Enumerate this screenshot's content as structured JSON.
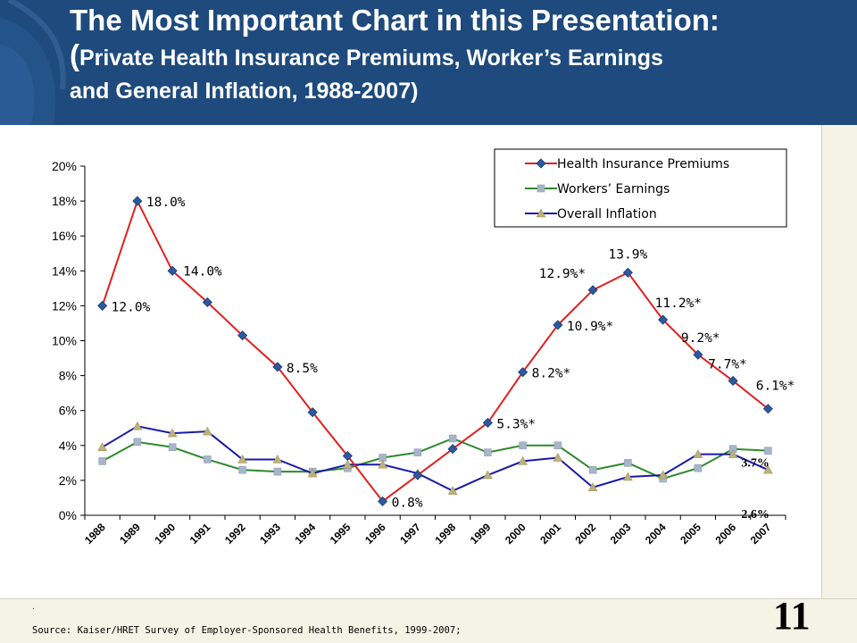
{
  "slide": {
    "title_line1": "The Most Important Chart in this Presentation:",
    "title_paren": "(",
    "title_line2": "Private Health Insurance Premiums, Worker’s Earnings",
    "title_line3": "and General Inflation, 1988-2007)",
    "page_number": "11",
    "dot": ".",
    "source": "Source:  Kaiser/HRET Survey of Employer-Sponsored Health Benefits, 1999-2007;"
  },
  "colors": {
    "header_bg": "#1e4a7d",
    "premiums": "#e02020",
    "premiums_marker": "#2b5aa0",
    "earnings": "#2d8a2d",
    "earnings_marker": "#a8b4c8",
    "inflation": "#1a1aa8",
    "inflation_marker": "#bdb07a"
  },
  "chart_data": {
    "type": "line",
    "categories": [
      "1988",
      "1989",
      "1990",
      "1991",
      "1992",
      "1993",
      "1994",
      "1995",
      "1996",
      "1997",
      "1998",
      "1999",
      "2000",
      "2001",
      "2002",
      "2003",
      "2004",
      "2005",
      "2006",
      "2007"
    ],
    "ylim": [
      0,
      20
    ],
    "yticks": [
      "0%",
      "2%",
      "4%",
      "6%",
      "8%",
      "10%",
      "12%",
      "14%",
      "16%",
      "18%",
      "20%"
    ],
    "legend_position": "top-right",
    "series": [
      {
        "name": "Health Insurance Premiums",
        "values": [
          12.0,
          18.0,
          14.0,
          12.2,
          10.3,
          8.5,
          5.9,
          3.4,
          0.8,
          2.3,
          3.8,
          5.3,
          8.2,
          10.9,
          12.9,
          13.9,
          11.2,
          9.2,
          7.7,
          6.1
        ]
      },
      {
        "name": "Workers’ Earnings",
        "values": [
          3.1,
          4.2,
          3.9,
          3.2,
          2.6,
          2.5,
          2.5,
          2.7,
          3.3,
          3.6,
          4.4,
          3.6,
          4.0,
          4.0,
          2.6,
          3.0,
          2.1,
          2.7,
          3.8,
          3.7
        ]
      },
      {
        "name": "Overall Inflation",
        "values": [
          3.9,
          5.1,
          4.7,
          4.8,
          3.2,
          3.2,
          2.4,
          2.9,
          2.9,
          2.4,
          1.4,
          2.3,
          3.1,
          3.3,
          1.6,
          2.2,
          2.3,
          3.5,
          3.5,
          2.6
        ]
      }
    ],
    "data_labels": [
      {
        "text": "12.0%",
        "year": "1988"
      },
      {
        "text": "18.0%",
        "year": "1989"
      },
      {
        "text": "14.0%",
        "year": "1990"
      },
      {
        "text": "8.5%",
        "year": "1993"
      },
      {
        "text": "0.8%",
        "year": "1996"
      },
      {
        "text": "5.3%*",
        "year": "1999"
      },
      {
        "text": "8.2%*",
        "year": "2000"
      },
      {
        "text": "10.9%*",
        "year": "2001"
      },
      {
        "text": "12.9%*",
        "year": "2002"
      },
      {
        "text": "13.9%",
        "year": "2003"
      },
      {
        "text": "11.2%*",
        "year": "2004"
      },
      {
        "text": "9.2%*",
        "year": "2005"
      },
      {
        "text": "7.7%*",
        "year": "2006"
      },
      {
        "text": "6.1%*",
        "year": "2007"
      }
    ],
    "side_labels": [
      {
        "text": "3.7%",
        "series": "Workers’ Earnings"
      },
      {
        "text": "2.6%",
        "series": "Overall Inflation"
      }
    ]
  }
}
